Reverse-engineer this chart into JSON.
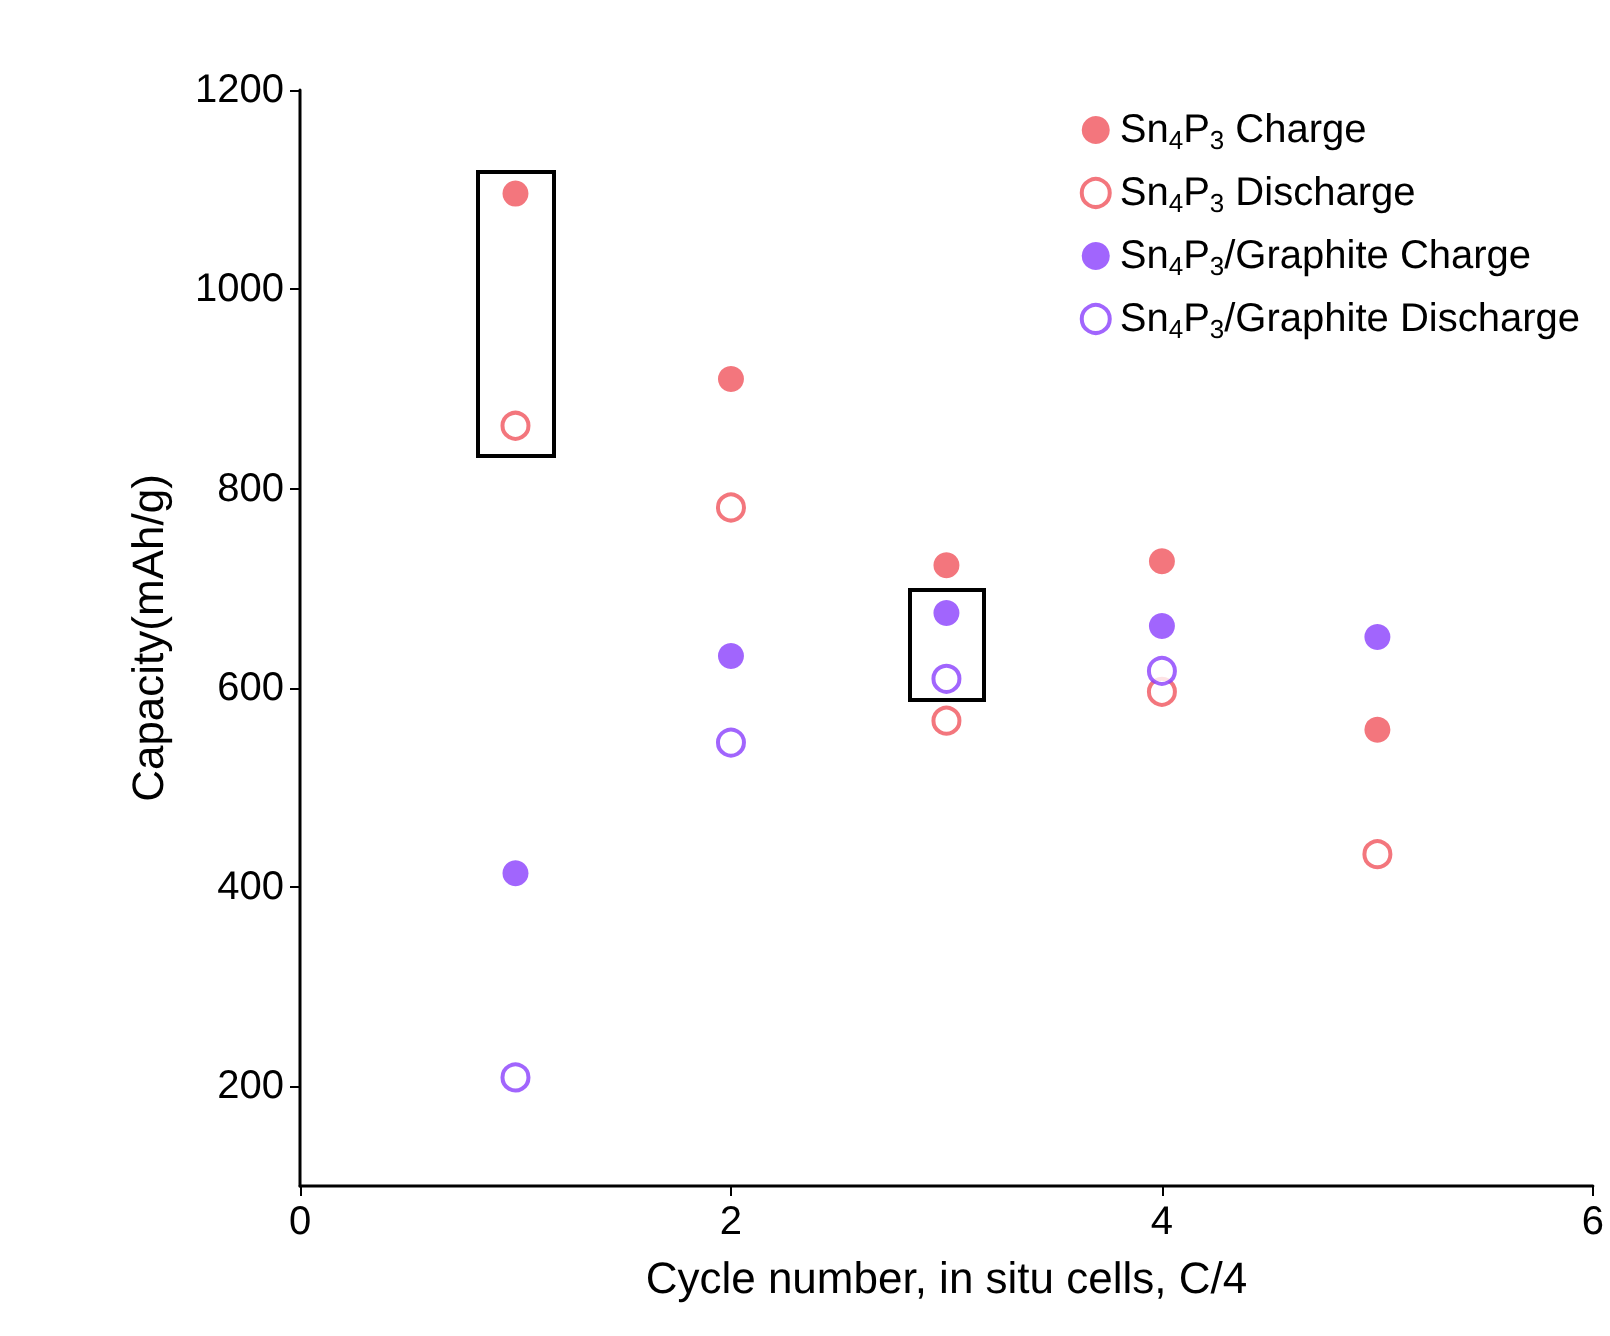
{
  "chart_data": {
    "type": "scatter",
    "xlabel": "Cycle number, in situ cells, C/4",
    "ylabel": "Capacity(mAh/g)",
    "x": [
      1,
      2,
      3,
      4,
      5
    ],
    "xlim": [
      0,
      6
    ],
    "xticks": [
      0,
      2,
      4,
      6
    ],
    "ylim": [
      100,
      1200
    ],
    "yticks": [
      200,
      400,
      600,
      800,
      1000,
      1200
    ],
    "grid": false,
    "legend": "top right",
    "marker": "circle",
    "series": [
      {
        "name": "Sn$_{4}$P$_{3}$ Charge",
        "color": "#f0545c",
        "values": [
          1096,
          910,
          723,
          727,
          558
        ]
      },
      {
        "name": "Sn$_{4}$P$_{3}$ Discharge",
        "color": "#f0545c",
        "marker": "open circle",
        "values": [
          863,
          781,
          567,
          596,
          433
        ]
      },
      {
        "name": "Sn$_{4}$P$_{3}$/Graphite Charge",
        "color": "#8a3ffc",
        "values": [
          414,
          632,
          675,
          662,
          651
        ]
      },
      {
        "name": "Sn$_{4}$P$_{3}$/Graphite Discharge",
        "color": "#8a3ffc",
        "marker": "open circle",
        "values": [
          209,
          545,
          609,
          617,
          null
        ]
      }
    ]
  }
}
